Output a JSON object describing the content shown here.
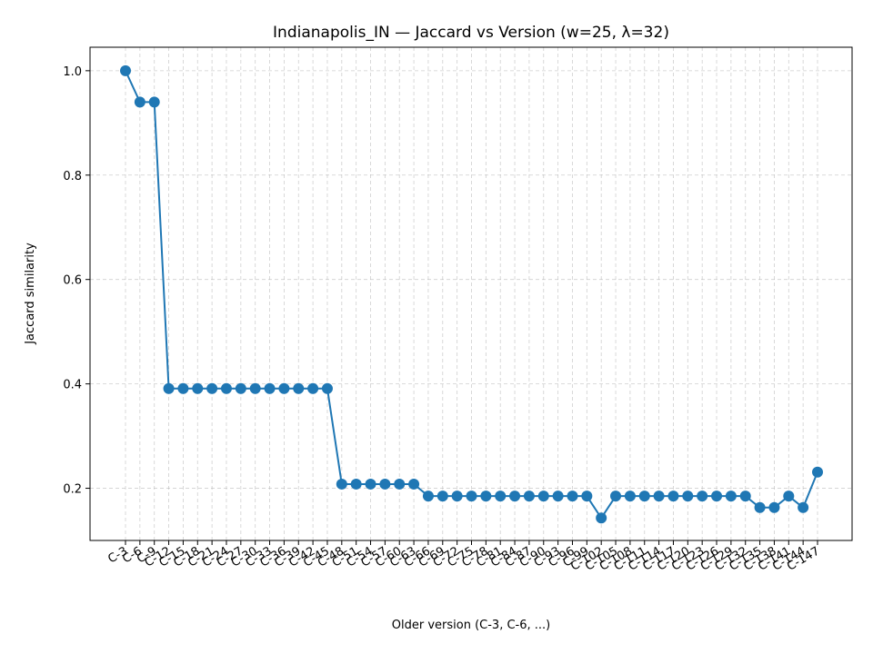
{
  "chart_data": {
    "type": "line",
    "title": "Indianapolis_IN — Jaccard vs Version (w=25, λ=32)",
    "xlabel": "Older version (C-3, C-6, ...)",
    "ylabel": "Jaccard similarity",
    "categories": [
      "C-3",
      "C-6",
      "C-9",
      "C-12",
      "C-15",
      "C-18",
      "C-21",
      "C-24",
      "C-27",
      "C-30",
      "C-33",
      "C-36",
      "C-39",
      "C-42",
      "C-45",
      "C-48",
      "C-51",
      "C-54",
      "C-57",
      "C-60",
      "C-63",
      "C-66",
      "C-69",
      "C-72",
      "C-75",
      "C-78",
      "C-81",
      "C-84",
      "C-87",
      "C-90",
      "C-93",
      "C-96",
      "C-99",
      "C-102",
      "C-105",
      "C-108",
      "C-111",
      "C-114",
      "C-117",
      "C-120",
      "C-123",
      "C-126",
      "C-129",
      "C-132",
      "C-135",
      "C-138",
      "C-141",
      "C-144",
      "C-147"
    ],
    "series": [
      {
        "name": "",
        "color": "#1f77b4",
        "values": [
          1.0,
          0.94,
          0.94,
          0.391,
          0.391,
          0.391,
          0.391,
          0.391,
          0.391,
          0.391,
          0.391,
          0.391,
          0.391,
          0.391,
          0.391,
          0.208,
          0.208,
          0.208,
          0.208,
          0.208,
          0.208,
          0.185,
          0.185,
          0.185,
          0.185,
          0.185,
          0.185,
          0.185,
          0.185,
          0.185,
          0.185,
          0.185,
          0.185,
          0.143,
          0.185,
          0.185,
          0.185,
          0.185,
          0.185,
          0.185,
          0.185,
          0.185,
          0.185,
          0.185,
          0.163,
          0.163,
          0.185,
          0.163,
          0.231
        ]
      }
    ],
    "yticks": [
      0.2,
      0.4,
      0.6,
      0.8,
      1.0
    ],
    "ytick_labels": [
      "0.2",
      "0.4",
      "0.6",
      "0.8",
      "1.0"
    ],
    "ylim": [
      0.1,
      1.045
    ],
    "grid": true,
    "legend": "none"
  }
}
